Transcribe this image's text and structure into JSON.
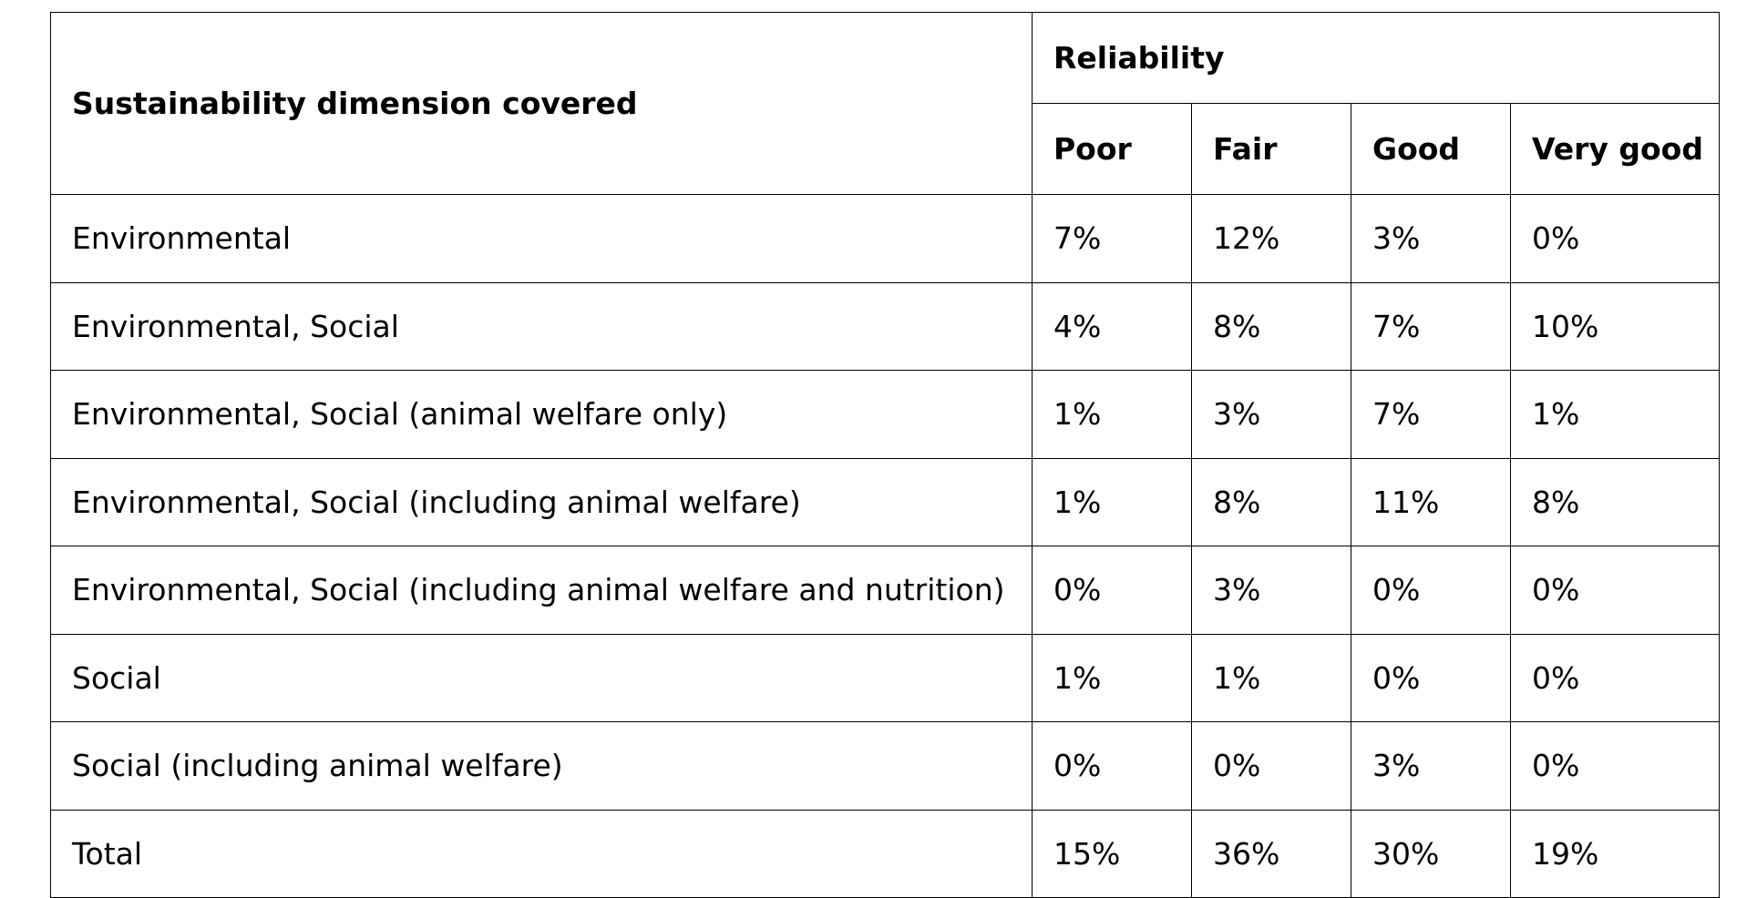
{
  "chart_data": {
    "type": "table",
    "row_header": "Sustainability dimension covered",
    "column_group": "Reliability",
    "columns": [
      "Poor",
      "Fair",
      "Good",
      "Very good"
    ],
    "rows": [
      {
        "label": "Environmental",
        "values": [
          "7%",
          "12%",
          "3%",
          "0%"
        ]
      },
      {
        "label": "Environmental, Social",
        "values": [
          "4%",
          "8%",
          "7%",
          "10%"
        ]
      },
      {
        "label": "Environmental, Social (animal welfare only)",
        "values": [
          "1%",
          "3%",
          "7%",
          "1%"
        ]
      },
      {
        "label": "Environmental, Social (including animal welfare)",
        "values": [
          "1%",
          "8%",
          "11%",
          "8%"
        ]
      },
      {
        "label": "Environmental, Social (including animal welfare and nutrition)",
        "values": [
          "0%",
          "3%",
          "0%",
          "0%"
        ]
      },
      {
        "label": "Social",
        "values": [
          "1%",
          "1%",
          "0%",
          "0%"
        ]
      },
      {
        "label": "Social (including animal welfare)",
        "values": [
          "0%",
          "0%",
          "3%",
          "0%"
        ]
      },
      {
        "label": "Total",
        "values": [
          "15%",
          "36%",
          "30%",
          "19%"
        ]
      }
    ]
  }
}
